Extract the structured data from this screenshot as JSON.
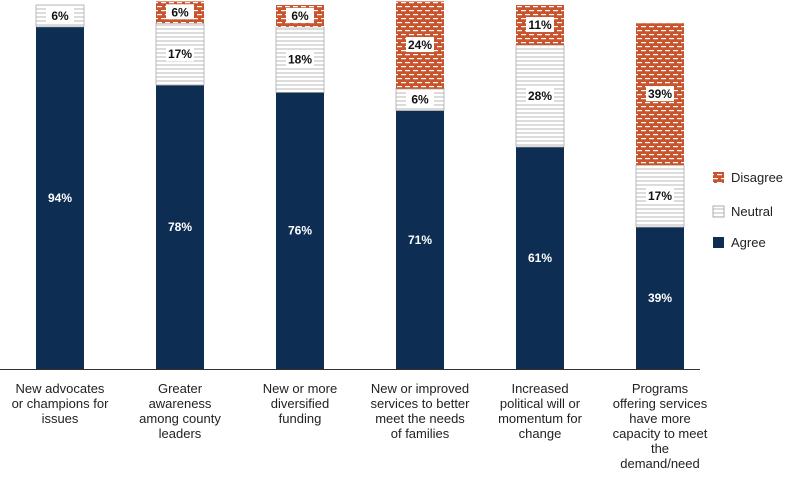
{
  "chart_data": {
    "type": "bar",
    "stacked": true,
    "categories": [
      "New advocates or champions for issues",
      "Greater awareness among county leaders",
      "New or more diversified funding",
      "New or improved services to better meet the needs of families",
      "Increased political will or momentum for change",
      "Programs offering services have more capacity to meet the demand/need"
    ],
    "category_lines": [
      [
        "New advocates",
        "or champions for",
        "issues"
      ],
      [
        "Greater",
        "awareness",
        "among county",
        "leaders"
      ],
      [
        "New or more",
        "diversified",
        "funding"
      ],
      [
        "New or improved",
        "services to better",
        "meet the needs",
        "of families"
      ],
      [
        "Increased",
        "political will or",
        "momentum for",
        "change"
      ],
      [
        "Programs",
        "offering services",
        "have more",
        "capacity to meet",
        "the",
        "demand/need"
      ]
    ],
    "series": [
      {
        "name": "Agree",
        "values": [
          94,
          78,
          76,
          71,
          61,
          39
        ],
        "color": "#0d2d52",
        "labels": [
          "94%",
          "78%",
          "76%",
          "71%",
          "61%",
          "39%"
        ]
      },
      {
        "name": "Neutral",
        "values": [
          6,
          17,
          18,
          6,
          28,
          17
        ],
        "color": "#ffffff",
        "labels": [
          "6%",
          "17%",
          "18%",
          "6%",
          "28%",
          "17%"
        ]
      },
      {
        "name": "Disagree",
        "values": [
          0,
          6,
          6,
          24,
          11,
          39
        ],
        "color": "#c8552e",
        "labels": [
          "",
          "6%",
          "6%",
          "24%",
          "11%",
          "39%"
        ]
      }
    ],
    "legend_order": [
      "Disagree",
      "Neutral",
      "Agree"
    ],
    "legend_position": "right",
    "ylim": [
      0,
      100
    ],
    "grid": false
  }
}
